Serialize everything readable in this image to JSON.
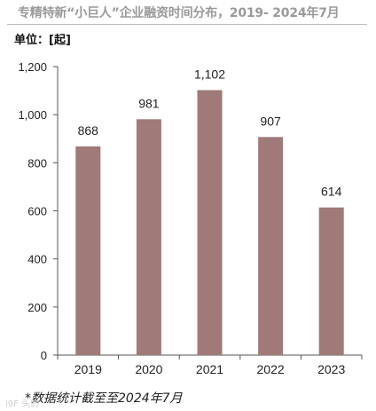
{
  "header": {
    "title": "专精特新“小巨人”企业融资时间分布，2019- 2024年7月"
  },
  "unit_label": "单位：[起]",
  "footnote": "*数据统计截至至2024年7月",
  "watermark": "i9F 头豹",
  "colors": {
    "bar": "#a07a78",
    "axis": "#555555",
    "text": "#222222"
  },
  "chart_data": {
    "type": "bar",
    "title": "专精特新“小巨人”企业融资时间分布，2019- 2024年7月",
    "xlabel": "",
    "ylabel": "单位：[起]",
    "categories": [
      "2019",
      "2020",
      "2021",
      "2022",
      "2023"
    ],
    "values": [
      868,
      981,
      1102,
      907,
      614
    ],
    "value_labels": [
      "868",
      "981",
      "1,102",
      "907",
      "614"
    ],
    "yticks": [
      0,
      200,
      400,
      600,
      800,
      1000,
      1200
    ],
    "ytick_labels": [
      "0",
      "200",
      "400",
      "600",
      "800",
      "1,000",
      "1,200"
    ],
    "ylim": [
      0,
      1200
    ],
    "grid": false,
    "legend": "none"
  }
}
